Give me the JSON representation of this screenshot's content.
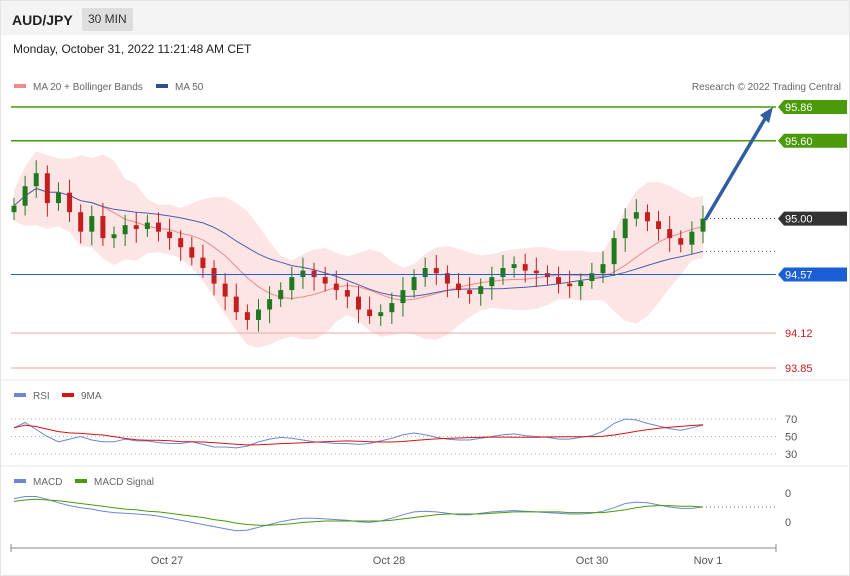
{
  "header": {
    "pair": "AUD/JPY",
    "timeframe": "30 MIN",
    "timestamp": "Monday, October 31, 2022 11:21:48 AM CET"
  },
  "legend": {
    "ma20_bb": "MA 20 + Bollinger Bands",
    "ma50": "MA 50",
    "credit": "Research © 2022 Trading Central",
    "rsi": "RSI",
    "rsi_ma": "9MA",
    "macd": "MACD",
    "macd_signal": "MACD Signal"
  },
  "colors": {
    "resistance": "#4a9a0a",
    "support": "#e36363",
    "pivot": "#1a5fd6",
    "current": "#333333",
    "up_candle": "#1f7a1f",
    "down_candle": "#c41e1e",
    "bollinger_fill": "#fde2e2",
    "ma20": "#f08a8a",
    "ma50": "#4a5fa8",
    "rsi": "#6b86d6",
    "rsi_ma": "#dd1111",
    "macd": "#6b86d6",
    "macd_signal": "#4a9a0a",
    "arrow": "#2f5fa0"
  },
  "chart_data": {
    "type": "candlestick",
    "x_labels": [
      "Oct 27",
      "Oct 28",
      "Oct 30",
      "Nov 1"
    ],
    "y_range": [
      93.7,
      96.0
    ],
    "levels": [
      {
        "label": "95.86",
        "value": 95.86,
        "kind": "resistance"
      },
      {
        "label": "95.60",
        "value": 95.6,
        "kind": "resistance"
      },
      {
        "label": "95.00",
        "value": 95.0,
        "kind": "current"
      },
      {
        "label": "94.57",
        "value": 94.57,
        "kind": "pivot"
      },
      {
        "label": "94.12",
        "value": 94.12,
        "kind": "support"
      },
      {
        "label": "93.85",
        "value": 93.85,
        "kind": "support"
      }
    ],
    "closes": [
      95.1,
      95.25,
      95.35,
      95.12,
      95.2,
      95.05,
      94.9,
      95.02,
      94.85,
      94.88,
      94.95,
      94.92,
      94.97,
      94.9,
      94.85,
      94.78,
      94.7,
      94.62,
      94.5,
      94.4,
      94.28,
      94.22,
      94.3,
      94.38,
      94.45,
      94.55,
      94.6,
      94.55,
      94.5,
      94.45,
      94.4,
      94.3,
      94.25,
      94.28,
      94.35,
      94.45,
      94.55,
      94.62,
      94.58,
      94.5,
      94.45,
      94.42,
      94.48,
      94.55,
      94.62,
      94.65,
      94.6,
      94.58,
      94.55,
      94.5,
      94.48,
      94.52,
      94.58,
      94.65,
      94.85,
      95.0,
      95.05,
      94.98,
      94.92,
      94.85,
      94.8,
      94.9,
      95.0
    ],
    "forecast_target": 95.86,
    "rsi": {
      "ticks": [
        "70",
        "50",
        "30"
      ],
      "tick_values": [
        70,
        50,
        30
      ],
      "values": [
        60,
        66,
        58,
        50,
        44,
        47,
        50,
        46,
        44,
        44,
        47,
        45,
        45,
        43,
        42,
        42,
        44,
        41,
        38,
        38,
        37,
        39,
        44,
        47,
        49,
        48,
        46,
        44,
        43,
        42,
        42,
        41,
        42,
        45,
        48,
        52,
        54,
        52,
        49,
        47,
        46,
        46,
        48,
        50,
        52,
        53,
        51,
        50,
        49,
        47,
        47,
        49,
        51,
        56,
        65,
        70,
        69,
        65,
        62,
        59,
        57,
        60,
        63
      ]
    },
    "macd": {
      "ticks": [
        "0",
        "0"
      ],
      "values": [
        0.22,
        0.25,
        0.25,
        0.21,
        0.16,
        0.12,
        0.09,
        0.07,
        0.04,
        0.02,
        0.01,
        0.0,
        -0.01,
        -0.03,
        -0.06,
        -0.09,
        -0.12,
        -0.15,
        -0.18,
        -0.21,
        -0.24,
        -0.23,
        -0.19,
        -0.15,
        -0.11,
        -0.08,
        -0.06,
        -0.06,
        -0.07,
        -0.08,
        -0.09,
        -0.11,
        -0.12,
        -0.1,
        -0.06,
        -0.01,
        0.03,
        0.04,
        0.03,
        0.01,
        -0.01,
        -0.01,
        0.01,
        0.03,
        0.04,
        0.05,
        0.04,
        0.03,
        0.02,
        0.01,
        0.0,
        0.0,
        0.01,
        0.04,
        0.09,
        0.15,
        0.17,
        0.16,
        0.13,
        0.1,
        0.08,
        0.08,
        0.1
      ],
      "signal": [
        0.18,
        0.2,
        0.21,
        0.2,
        0.19,
        0.17,
        0.15,
        0.13,
        0.11,
        0.09,
        0.07,
        0.06,
        0.04,
        0.03,
        0.01,
        -0.01,
        -0.03,
        -0.05,
        -0.08,
        -0.1,
        -0.13,
        -0.15,
        -0.16,
        -0.16,
        -0.15,
        -0.14,
        -0.12,
        -0.11,
        -0.1,
        -0.1,
        -0.1,
        -0.1,
        -0.1,
        -0.1,
        -0.09,
        -0.07,
        -0.05,
        -0.03,
        -0.01,
        0.0,
        0.0,
        0.0,
        0.0,
        0.01,
        0.02,
        0.03,
        0.03,
        0.03,
        0.03,
        0.03,
        0.02,
        0.02,
        0.02,
        0.02,
        0.04,
        0.06,
        0.09,
        0.11,
        0.12,
        0.12,
        0.11,
        0.11,
        0.1
      ]
    }
  }
}
